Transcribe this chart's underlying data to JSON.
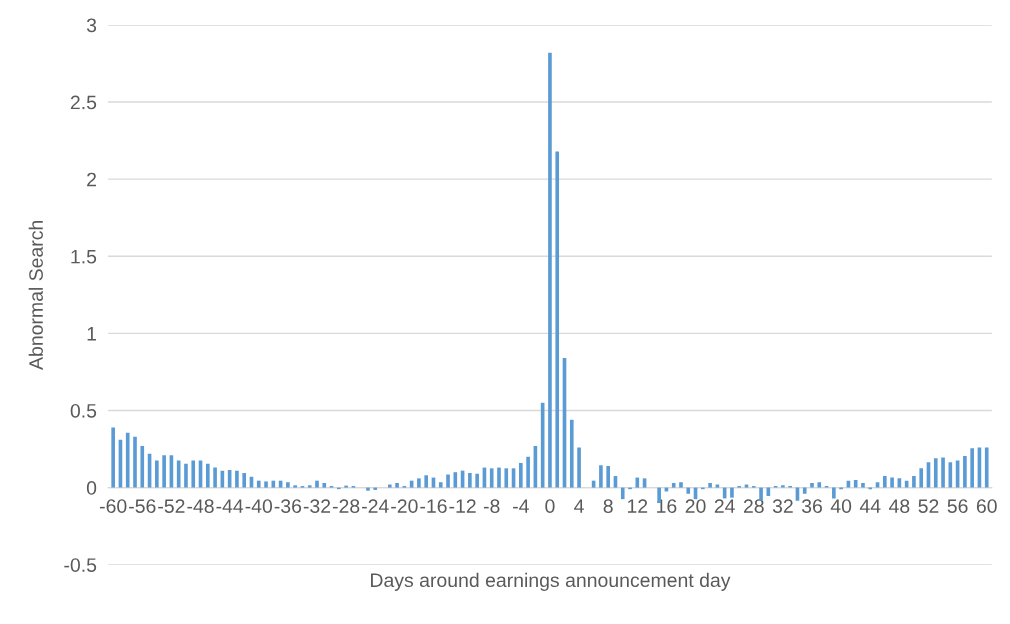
{
  "chart_data": {
    "type": "bar",
    "xlabel": "Days around earnings announcement day",
    "ylabel": "Abnormal Search",
    "categories": [
      "-60",
      null,
      null,
      null,
      "-56",
      null,
      null,
      null,
      "-52",
      null,
      null,
      null,
      "-48",
      null,
      null,
      null,
      "-44",
      null,
      null,
      null,
      "-40",
      null,
      null,
      null,
      "-36",
      null,
      null,
      null,
      "-32",
      null,
      null,
      null,
      "-28",
      null,
      null,
      null,
      "-24",
      null,
      null,
      null,
      "-20",
      null,
      null,
      null,
      "-16",
      null,
      null,
      null,
      "-12",
      null,
      null,
      null,
      "-8",
      null,
      null,
      null,
      "-4",
      null,
      null,
      null,
      "0",
      null,
      null,
      null,
      "4",
      null,
      null,
      null,
      "8",
      null,
      null,
      null,
      "12",
      null,
      null,
      null,
      "16",
      null,
      null,
      null,
      "20",
      null,
      null,
      null,
      "24",
      null,
      null,
      null,
      "28",
      null,
      null,
      null,
      "32",
      null,
      null,
      null,
      "36",
      null,
      null,
      null,
      "40",
      null,
      null,
      null,
      "44",
      null,
      null,
      null,
      "48",
      null,
      null,
      null,
      "52",
      null,
      null,
      null,
      "56",
      null,
      null,
      null,
      "60"
    ],
    "values": [
      0.39,
      0.31,
      0.355,
      0.33,
      0.27,
      0.22,
      0.175,
      0.21,
      0.21,
      0.175,
      0.155,
      0.175,
      0.175,
      0.155,
      0.13,
      0.11,
      0.115,
      0.11,
      0.095,
      0.07,
      0.045,
      0.04,
      0.045,
      0.045,
      0.035,
      0.015,
      0.01,
      0.015,
      0.045,
      0.03,
      0.01,
      -0.01,
      0.013,
      0.01,
      0,
      -0.02,
      -0.015,
      0,
      0.02,
      0.03,
      0.01,
      0.045,
      0.06,
      0.08,
      0.065,
      0.035,
      0.085,
      0.1,
      0.11,
      0.095,
      0.09,
      0.13,
      0.125,
      0.13,
      0.125,
      0.125,
      0.16,
      0.2,
      0.27,
      0.55,
      2.82,
      2.18,
      0.84,
      0.44,
      0.26,
      0,
      0.045,
      0.145,
      0.14,
      0.075,
      -0.075,
      -0.01,
      0.065,
      0.06,
      0,
      -0.1,
      -0.025,
      0.03,
      0.035,
      -0.04,
      -0.075,
      -0.01,
      0.03,
      0.02,
      -0.07,
      -0.065,
      0.01,
      0.02,
      0.01,
      -0.085,
      -0.055,
      0.01,
      0.015,
      0.01,
      -0.085,
      -0.04,
      0.03,
      0.035,
      0.01,
      -0.07,
      -0.01,
      0.045,
      0.05,
      0.03,
      -0.01,
      0.035,
      0.075,
      0.065,
      0.06,
      0.045,
      0.075,
      0.125,
      0.165,
      0.19,
      0.195,
      0.165,
      0.175,
      0.205,
      0.255,
      0.26,
      0.26
    ],
    "color": "#5b9bd5",
    "ylim": [
      -0.5,
      3
    ],
    "yticks": [
      -0.5,
      0,
      0.5,
      1,
      1.5,
      2,
      2.5,
      3
    ],
    "grid": "y"
  }
}
